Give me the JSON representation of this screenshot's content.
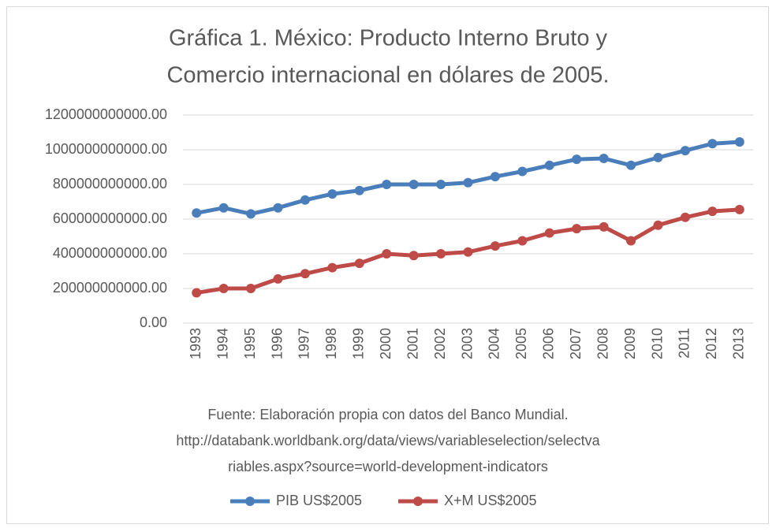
{
  "chart_data": {
    "type": "line",
    "title": [
      "Gráfica 1. México: Producto Interno Bruto y",
      "Comercio internacional en dólares de 2005."
    ],
    "source": [
      "Fuente:  Elaboración propia con datos del Banco Mundial.",
      "http://databank.worldbank.org/data/views/variableselection/selectva",
      "riables.aspx?source=world-development-indicators"
    ],
    "categories": [
      "1993",
      "1994",
      "1995",
      "1996",
      "1997",
      "1998",
      "1999",
      "2000",
      "2001",
      "2002",
      "2003",
      "2004",
      "2005",
      "2006",
      "2007",
      "2008",
      "2009",
      "2010",
      "2011",
      "2012",
      "2013"
    ],
    "series": [
      {
        "name": "PIB US$2005",
        "color": "#4a7ebb",
        "values": [
          635000000000,
          665000000000,
          630000000000,
          665000000000,
          710000000000,
          745000000000,
          765000000000,
          800000000000,
          800000000000,
          800000000000,
          810000000000,
          845000000000,
          875000000000,
          910000000000,
          945000000000,
          950000000000,
          910000000000,
          955000000000,
          995000000000,
          1035000000000,
          1045000000000
        ]
      },
      {
        "name": "X+M US$2005",
        "color": "#be4b48",
        "values": [
          175000000000,
          200000000000,
          200000000000,
          255000000000,
          285000000000,
          320000000000,
          345000000000,
          400000000000,
          390000000000,
          400000000000,
          410000000000,
          445000000000,
          475000000000,
          520000000000,
          545000000000,
          555000000000,
          475000000000,
          565000000000,
          610000000000,
          645000000000,
          655000000000
        ]
      }
    ],
    "ylim": [
      0,
      1200000000000
    ],
    "yticks": [
      {
        "value": 0,
        "label": "0.00"
      },
      {
        "value": 200000000000,
        "label": "200000000000.00"
      },
      {
        "value": 400000000000,
        "label": "400000000000.00"
      },
      {
        "value": 600000000000,
        "label": "600000000000.00"
      },
      {
        "value": 800000000000,
        "label": "800000000000.00"
      },
      {
        "value": 1000000000000,
        "label": "1000000000000.00"
      },
      {
        "value": 1200000000000,
        "label": "1200000000000.00"
      }
    ],
    "grid": true,
    "legend": "bottom"
  }
}
